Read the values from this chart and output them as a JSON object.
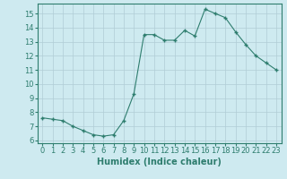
{
  "x": [
    0,
    1,
    2,
    3,
    4,
    5,
    6,
    7,
    8,
    9,
    10,
    11,
    12,
    13,
    14,
    15,
    16,
    17,
    18,
    19,
    20,
    21,
    22,
    23
  ],
  "y": [
    7.6,
    7.5,
    7.4,
    7.0,
    6.7,
    6.4,
    6.3,
    6.4,
    7.4,
    9.3,
    13.5,
    13.5,
    13.1,
    13.1,
    13.8,
    13.4,
    15.3,
    15.0,
    14.7,
    13.7,
    12.8,
    12.0,
    11.5,
    11.0
  ],
  "xlabel": "Humidex (Indice chaleur)",
  "xlim": [
    -0.5,
    23.5
  ],
  "ylim": [
    5.8,
    15.7
  ],
  "yticks": [
    6,
    7,
    8,
    9,
    10,
    11,
    12,
    13,
    14,
    15
  ],
  "xticks": [
    0,
    1,
    2,
    3,
    4,
    5,
    6,
    7,
    8,
    9,
    10,
    11,
    12,
    13,
    14,
    15,
    16,
    17,
    18,
    19,
    20,
    21,
    22,
    23
  ],
  "line_color": "#2e7d6e",
  "marker_color": "#2e7d6e",
  "bg_color": "#ceeaf0",
  "grid_color": "#b0cdd6",
  "tick_label_color": "#2e7d6e",
  "xlabel_color": "#2e7d6e",
  "xlabel_fontsize": 7,
  "tick_fontsize": 6
}
